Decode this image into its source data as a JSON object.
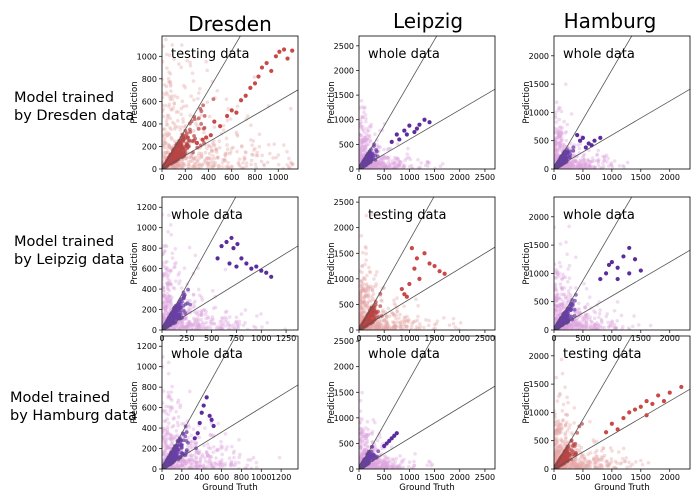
{
  "figure": {
    "columns": [
      "Dresden",
      "Leipzig",
      "Hamburg"
    ],
    "rows": [
      {
        "line1": "Model trained",
        "line2": "by Dresden data"
      },
      {
        "line1": "Model trained",
        "line2": "by Leipzig data"
      },
      {
        "line1": "Model trained",
        "line2": "by Hamburg data"
      }
    ]
  },
  "colors": {
    "testing_light": "#e6a6a6",
    "testing_dark": "#c94848",
    "whole_light": "#dca3de",
    "whole_dark": "#5b2c9b",
    "whole_core": "#6a3fa6",
    "testing_core": "#b84444",
    "ref_line": "#555555"
  },
  "chart_data": [
    {
      "type": "scatter",
      "row": 0,
      "col": 0,
      "note": "testing data",
      "xlabel": "",
      "ylabel": "Prediction",
      "xlim": [
        0,
        1170
      ],
      "ylim": [
        0,
        1180
      ],
      "xticks": [
        0,
        200,
        400,
        600,
        800,
        1000
      ],
      "yticks": [
        0,
        200,
        400,
        600,
        800,
        1000
      ],
      "palette": "testing",
      "scale": 1000,
      "seed": 11,
      "highlight": [
        [
          420,
          300
        ],
        [
          450,
          420
        ],
        [
          500,
          380
        ],
        [
          560,
          470
        ],
        [
          600,
          520
        ],
        [
          640,
          500
        ],
        [
          680,
          610
        ],
        [
          720,
          650
        ],
        [
          760,
          720
        ],
        [
          800,
          760
        ],
        [
          830,
          820
        ],
        [
          860,
          900
        ],
        [
          900,
          940
        ],
        [
          940,
          870
        ],
        [
          980,
          1000
        ],
        [
          1010,
          1040
        ],
        [
          1050,
          1060
        ],
        [
          1080,
          980
        ],
        [
          1120,
          1050
        ],
        [
          350,
          260
        ],
        [
          300,
          230
        ],
        [
          380,
          280
        ]
      ]
    },
    {
      "type": "scatter",
      "row": 0,
      "col": 1,
      "note": "whole data",
      "xlabel": "",
      "ylabel": "Prediction",
      "xlim": [
        0,
        2700
      ],
      "ylim": [
        0,
        2700
      ],
      "xticks": [
        0,
        500,
        1000,
        1500,
        2000,
        2500
      ],
      "yticks": [
        0,
        500,
        1000,
        1500,
        2000,
        2500
      ],
      "palette": "whole",
      "scale": 1000,
      "seed": 21,
      "highlight": [
        [
          650,
          550
        ],
        [
          750,
          700
        ],
        [
          800,
          600
        ],
        [
          900,
          780
        ],
        [
          1000,
          880
        ],
        [
          1100,
          750
        ],
        [
          1200,
          900
        ],
        [
          1300,
          1000
        ],
        [
          1400,
          950
        ],
        [
          1150,
          820
        ],
        [
          950,
          700
        ]
      ]
    },
    {
      "type": "scatter",
      "row": 0,
      "col": 2,
      "note": "whole data",
      "xlabel": "",
      "ylabel": "Prediction",
      "xlim": [
        0,
        2350
      ],
      "ylim": [
        0,
        2350
      ],
      "xticks": [
        0,
        500,
        1000,
        1500,
        2000
      ],
      "yticks": [
        0,
        500,
        1000,
        1500,
        2000
      ],
      "palette": "whole",
      "scale": 900,
      "seed": 31,
      "highlight": [
        [
          400,
          600
        ],
        [
          450,
          500
        ],
        [
          500,
          550
        ],
        [
          600,
          450
        ],
        [
          700,
          500
        ],
        [
          800,
          550
        ],
        [
          650,
          420
        ],
        [
          550,
          380
        ]
      ]
    },
    {
      "type": "scatter",
      "row": 1,
      "col": 0,
      "note": "whole data",
      "xlabel": "",
      "ylabel": "Prediction",
      "xlim": [
        0,
        1370
      ],
      "ylim": [
        0,
        1300
      ],
      "xticks": [
        0,
        250,
        500,
        750,
        1000,
        1250
      ],
      "yticks": [
        0,
        200,
        400,
        600,
        800,
        1000,
        1200
      ],
      "palette": "whole",
      "scale": 800,
      "seed": 41,
      "highlight": [
        [
          600,
          820
        ],
        [
          650,
          860
        ],
        [
          700,
          900
        ],
        [
          720,
          800
        ],
        [
          760,
          840
        ],
        [
          800,
          700
        ],
        [
          850,
          650
        ],
        [
          900,
          600
        ],
        [
          950,
          620
        ],
        [
          1000,
          580
        ],
        [
          1050,
          560
        ],
        [
          1100,
          520
        ],
        [
          680,
          650
        ],
        [
          750,
          620
        ],
        [
          560,
          700
        ]
      ]
    },
    {
      "type": "scatter",
      "row": 1,
      "col": 1,
      "note": "testing data",
      "xlabel": "",
      "ylabel": "Prediction",
      "xlim": [
        0,
        2700
      ],
      "ylim": [
        0,
        2600
      ],
      "xticks": [
        0,
        500,
        1000,
        1500,
        2000,
        2500
      ],
      "yticks": [
        0,
        500,
        1000,
        1500,
        2000,
        2500
      ],
      "palette": "testing",
      "scale": 1200,
      "seed": 51,
      "highlight": [
        [
          900,
          700
        ],
        [
          1000,
          900
        ],
        [
          1100,
          1200
        ],
        [
          1200,
          1000
        ],
        [
          1300,
          1500
        ],
        [
          1400,
          1300
        ],
        [
          1500,
          1250
        ],
        [
          1600,
          1150
        ],
        [
          1700,
          1100
        ],
        [
          1050,
          1600
        ],
        [
          1150,
          1400
        ],
        [
          850,
          800
        ],
        [
          950,
          650
        ]
      ]
    },
    {
      "type": "scatter",
      "row": 1,
      "col": 2,
      "note": "whole data",
      "xlabel": "",
      "ylabel": "Prediction",
      "xlim": [
        0,
        2350
      ],
      "ylim": [
        0,
        2350
      ],
      "xticks": [
        0,
        500,
        1000,
        1500,
        2000
      ],
      "yticks": [
        0,
        500,
        1000,
        1500,
        2000
      ],
      "palette": "whole",
      "scale": 1100,
      "seed": 61,
      "highlight": [
        [
          900,
          1000
        ],
        [
          1000,
          1200
        ],
        [
          1100,
          1100
        ],
        [
          1200,
          1300
        ],
        [
          1300,
          1450
        ],
        [
          1400,
          1250
        ],
        [
          1500,
          1050
        ],
        [
          1100,
          900
        ],
        [
          1300,
          1000
        ],
        [
          800,
          900
        ],
        [
          950,
          1150
        ]
      ]
    },
    {
      "type": "scatter",
      "row": 2,
      "col": 0,
      "note": "whole data",
      "xlabel": "Ground Truth",
      "ylabel": "Prediction",
      "xlim": [
        0,
        1370
      ],
      "ylim": [
        0,
        1300
      ],
      "xticks": [
        0,
        200,
        400,
        600,
        800,
        1000,
        1200
      ],
      "yticks": [
        0,
        200,
        400,
        600,
        800,
        1000,
        1200
      ],
      "palette": "whole",
      "scale": 800,
      "seed": 71,
      "highlight": [
        [
          330,
          300
        ],
        [
          380,
          450
        ],
        [
          400,
          550
        ],
        [
          420,
          620
        ],
        [
          450,
          700
        ],
        [
          480,
          520
        ],
        [
          500,
          480
        ],
        [
          520,
          420
        ],
        [
          360,
          350
        ]
      ]
    },
    {
      "type": "scatter",
      "row": 2,
      "col": 1,
      "note": "whole data",
      "xlabel": "Ground Truth",
      "ylabel": "Prediction",
      "xlim": [
        0,
        2700
      ],
      "ylim": [
        0,
        2600
      ],
      "xticks": [
        0,
        500,
        1000,
        1500,
        2000,
        2500
      ],
      "yticks": [
        0,
        500,
        1000,
        1500,
        2000,
        2500
      ],
      "palette": "whole",
      "scale": 900,
      "seed": 81,
      "highlight": [
        [
          500,
          450
        ],
        [
          550,
          500
        ],
        [
          600,
          550
        ],
        [
          650,
          600
        ],
        [
          700,
          650
        ],
        [
          750,
          700
        ]
      ]
    },
    {
      "type": "scatter",
      "row": 2,
      "col": 2,
      "note": "testing data",
      "xlabel": "Ground Truth",
      "ylabel": "Prediction",
      "xlim": [
        0,
        2350
      ],
      "ylim": [
        0,
        2350
      ],
      "xticks": [
        0,
        500,
        1000,
        1500,
        2000
      ],
      "yticks": [
        0,
        500,
        1000,
        1500,
        2000
      ],
      "palette": "testing",
      "scale": 1100,
      "seed": 91,
      "highlight": [
        [
          1000,
          800
        ],
        [
          1200,
          900
        ],
        [
          1300,
          1000
        ],
        [
          1400,
          1050
        ],
        [
          1500,
          1100
        ],
        [
          1600,
          1200
        ],
        [
          1700,
          1150
        ],
        [
          1800,
          1300
        ],
        [
          1900,
          1200
        ],
        [
          2000,
          1350
        ],
        [
          2200,
          1450
        ],
        [
          1100,
          700
        ],
        [
          900,
          650
        ],
        [
          1600,
          950
        ]
      ]
    }
  ]
}
